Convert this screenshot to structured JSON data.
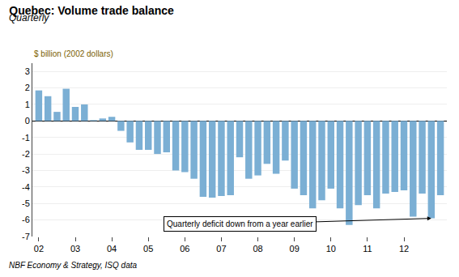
{
  "chart_data": {
    "type": "bar",
    "title": "Quebec: Volume trade balance",
    "subtitle": "Quarterly",
    "ylabel": "$ billion (2002 dollars)",
    "footer": "NBF Economy & Strategy, ISQ data",
    "annotation": "Quarterly deficit down from a year earlier",
    "color": "#7BAFD4",
    "categories": [
      "02",
      null,
      null,
      null,
      "03",
      null,
      null,
      null,
      "04",
      null,
      null,
      null,
      "05",
      null,
      null,
      null,
      "06",
      null,
      null,
      null,
      "07",
      null,
      null,
      null,
      "08",
      null,
      null,
      null,
      "09",
      null,
      null,
      null,
      "10",
      null,
      null,
      null,
      "11",
      null,
      null,
      null,
      "12",
      null,
      null,
      null,
      null
    ],
    "values": [
      1.85,
      1.5,
      0.55,
      1.95,
      0.85,
      1.0,
      0.05,
      0.15,
      0.25,
      -0.6,
      -1.3,
      -1.75,
      -1.75,
      -2.0,
      -1.9,
      -3.0,
      -3.1,
      -3.5,
      -4.6,
      -4.65,
      -4.55,
      -4.5,
      -2.2,
      -3.5,
      -3.3,
      -2.6,
      -3.2,
      -2.4,
      -4.1,
      -4.5,
      -5.3,
      -4.8,
      -4.1,
      -5.3,
      -6.3,
      -5.1,
      -4.5,
      -5.3,
      -4.4,
      -4.3,
      -4.2,
      -5.8,
      -4.4,
      -5.9,
      -4.5
    ],
    "ylim": [
      -7,
      3.5
    ],
    "yticks": [
      -7,
      -6,
      -5,
      -4,
      -3,
      -2,
      -1,
      0,
      1,
      2,
      3
    ],
    "grid": true
  }
}
